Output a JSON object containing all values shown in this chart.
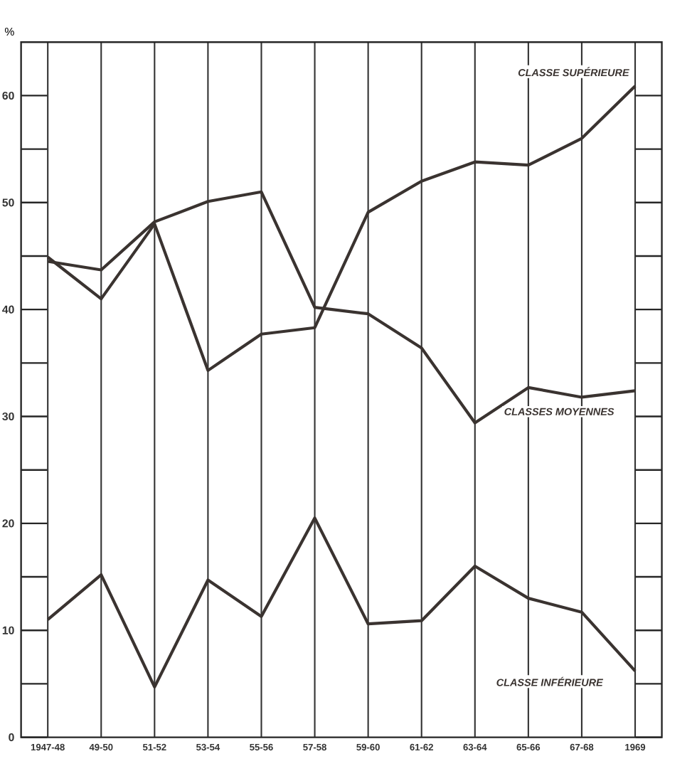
{
  "chart_data": {
    "type": "line",
    "ylabel": "%",
    "categories": [
      "1947-48",
      "49-50",
      "51-52",
      "53-54",
      "55-56",
      "57-58",
      "59-60",
      "61-62",
      "63-64",
      "65-66",
      "67-68",
      "1969"
    ],
    "series": [
      {
        "name": "CLASSE SUPÉRIEURE",
        "color": "#3a3330",
        "values": [
          44.9,
          41,
          48,
          34.3,
          37.7,
          38.3,
          49.1,
          52,
          53.8,
          53.5,
          56,
          60.9
        ]
      },
      {
        "name": "CLASSES MOYENNES",
        "color": "#3a3330",
        "values": [
          44.5,
          43.7,
          48.2,
          50.1,
          51,
          40.2,
          39.6,
          36.4,
          29.4,
          32.7,
          31.8,
          32.4
        ]
      },
      {
        "name": "CLASSE INFÉRIEURE",
        "color": "#3a3330",
        "values": [
          11,
          15.2,
          4.7,
          14.7,
          11.3,
          20.5,
          10.6,
          10.9,
          16,
          13,
          11.7,
          6.2
        ]
      }
    ],
    "ylim": [
      0,
      65
    ],
    "yticks": [
      0,
      10,
      20,
      30,
      40,
      50,
      60
    ],
    "grid": "x",
    "legend": false,
    "marker": "none",
    "line_style": "solid"
  }
}
